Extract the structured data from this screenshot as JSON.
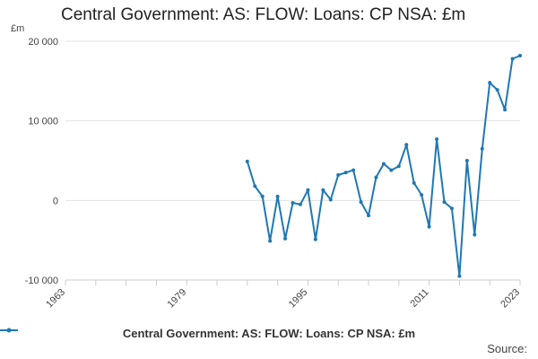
{
  "chart_data": {
    "type": "line",
    "title": "Central Government: AS: FLOW: Loans: CP NSA: £m",
    "unit_label": "£m",
    "xlabel": "",
    "ylabel": "",
    "xlim": [
      1963,
      2023
    ],
    "ylim": [
      -10000,
      20000
    ],
    "y_ticks": [
      -10000,
      0,
      10000,
      20000
    ],
    "y_tick_labels": [
      "-10 000",
      "0",
      "10 000",
      "20 000"
    ],
    "x_tick_labels": [
      "1963",
      "1979",
      "1995",
      "2011",
      "2023"
    ],
    "x_ticks": [
      1963,
      1979,
      1995,
      2011,
      2023
    ],
    "grid": true,
    "legend_position": "bottom",
    "series": [
      {
        "name": "Central Government: AS: FLOW: Loans: CP NSA: £m",
        "color": "#1f78b4",
        "x": [
          1987,
          1988,
          1989,
          1990,
          1991,
          1992,
          1993,
          1994,
          1995,
          1996,
          1997,
          1998,
          1999,
          2000,
          2001,
          2002,
          2003,
          2004,
          2005,
          2006,
          2007,
          2008,
          2009,
          2010,
          2011,
          2012,
          2013,
          2014,
          2015,
          2016,
          2017,
          2018,
          2019,
          2020,
          2021,
          2022,
          2023
        ],
        "values": [
          4900,
          1800,
          500,
          -5100,
          500,
          -4800,
          -300,
          -500,
          1300,
          -4900,
          1300,
          100,
          3200,
          3500,
          3800,
          -200,
          -1900,
          2900,
          4600,
          3800,
          4300,
          7000,
          2200,
          700,
          -3300,
          7700,
          -200,
          -1000,
          -9500,
          5000,
          -4300,
          6500,
          14800,
          13900,
          11400,
          17800,
          18200
        ]
      }
    ]
  },
  "legend": {
    "label": "Central Government: AS: FLOW: Loans: CP NSA: £m"
  },
  "source_label": "Source:"
}
